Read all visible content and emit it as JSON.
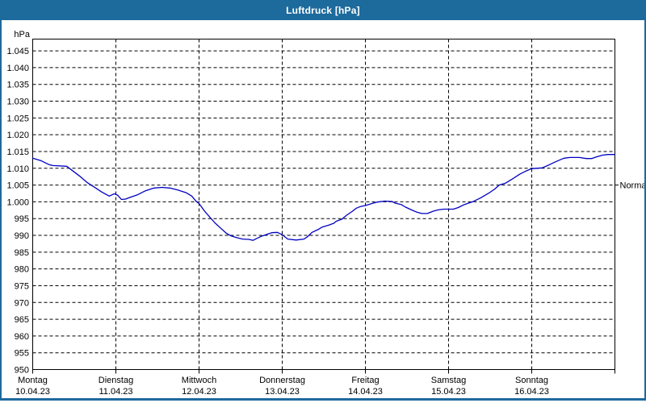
{
  "window": {
    "title": "Luftdruck [hPa]"
  },
  "colors": {
    "titlebar": "#1d6a9c",
    "frame": "#1d6a9c",
    "plot_background": "#ffffff",
    "grid": "#000000",
    "text": "#000000",
    "line": "#0000c0"
  },
  "chart_data": {
    "type": "line",
    "title": "Luftdruck [hPa]",
    "ylabel": "hPa",
    "y_unit_label": "hPa",
    "ylim": [
      950,
      1048.5
    ],
    "x_range_hours": 168,
    "grid": {
      "dashed": true,
      "color": "#000000"
    },
    "legend_position": "none",
    "line_color": "#0000c0",
    "y_ticks": [
      950,
      955,
      960,
      965,
      970,
      975,
      980,
      985,
      990,
      995,
      1000,
      1005,
      1010,
      1015,
      1020,
      1025,
      1030,
      1035,
      1040,
      1045
    ],
    "y_tick_labels": [
      "950",
      "955",
      "960",
      "965",
      "970",
      "975",
      "980",
      "985",
      "990",
      "995",
      "1.000",
      "1.005",
      "1.010",
      "1.015",
      "1.020",
      "1.025",
      "1.030",
      "1.035",
      "1.040",
      "1.045"
    ],
    "days": [
      {
        "label": "Montag",
        "date": "10.04.23"
      },
      {
        "label": "Dienstag",
        "date": "11.04.23"
      },
      {
        "label": "Mittwoch",
        "date": "12.04.23"
      },
      {
        "label": "Donnerstag",
        "date": "13.04.23"
      },
      {
        "label": "Freitag",
        "date": "14.04.23"
      },
      {
        "label": "Samstag",
        "date": "15.04.23"
      },
      {
        "label": "Sonntag",
        "date": "16.04.23"
      }
    ],
    "normal_marker": {
      "label": "Normal",
      "value": 1005
    },
    "series": [
      {
        "name": "Luftdruck",
        "unit": "hPa",
        "points": [
          [
            0,
            1013.0
          ],
          [
            2.3,
            1012.3
          ],
          [
            4.7,
            1011.1
          ],
          [
            5.8,
            1010.8
          ],
          [
            9.8,
            1010.6
          ],
          [
            11.2,
            1009.5
          ],
          [
            13.5,
            1007.7
          ],
          [
            15.8,
            1005.7
          ],
          [
            18.2,
            1004.1
          ],
          [
            19.8,
            1003.0
          ],
          [
            22.1,
            1001.7
          ],
          [
            23.5,
            1002.4
          ],
          [
            24.5,
            1002.0
          ],
          [
            25.6,
            1000.7
          ],
          [
            26.8,
            1000.8
          ],
          [
            28,
            1001.3
          ],
          [
            30.3,
            1002.1
          ],
          [
            32.6,
            1003.3
          ],
          [
            35,
            1004.1
          ],
          [
            37.3,
            1004.3
          ],
          [
            39.6,
            1004.1
          ],
          [
            41.9,
            1003.5
          ],
          [
            44.3,
            1002.7
          ],
          [
            45.9,
            1001.7
          ],
          [
            47.3,
            1000.0
          ],
          [
            48,
            999.5
          ],
          [
            49.6,
            997.2
          ],
          [
            51.3,
            995.2
          ],
          [
            52.7,
            993.6
          ],
          [
            54.3,
            992.1
          ],
          [
            55.9,
            990.6
          ],
          [
            57.3,
            989.8
          ],
          [
            58.9,
            989.3
          ],
          [
            60.6,
            988.9
          ],
          [
            62.4,
            988.8
          ],
          [
            63.6,
            988.5
          ],
          [
            64.3,
            988.9
          ],
          [
            65.9,
            989.7
          ],
          [
            67.6,
            990.3
          ],
          [
            69,
            990.8
          ],
          [
            70.6,
            990.9
          ],
          [
            72,
            990.2
          ],
          [
            73.6,
            988.9
          ],
          [
            76,
            988.6
          ],
          [
            78.3,
            988.9
          ],
          [
            79.4,
            989.7
          ],
          [
            80.6,
            990.9
          ],
          [
            82.3,
            991.7
          ],
          [
            83.6,
            992.5
          ],
          [
            85.3,
            993.0
          ],
          [
            86.9,
            993.6
          ],
          [
            87.6,
            994.2
          ],
          [
            89.2,
            994.8
          ],
          [
            90.6,
            996.0
          ],
          [
            92.3,
            997.2
          ],
          [
            93.4,
            998.1
          ],
          [
            94.6,
            998.6
          ],
          [
            96,
            998.9
          ],
          [
            97.6,
            999.4
          ],
          [
            99.3,
            999.9
          ],
          [
            101.6,
            1000.2
          ],
          [
            103.7,
            1000.1
          ],
          [
            104.6,
            999.6
          ],
          [
            106.3,
            999.2
          ],
          [
            107.6,
            998.4
          ],
          [
            109.3,
            997.6
          ],
          [
            110.9,
            996.9
          ],
          [
            112.3,
            996.5
          ],
          [
            113.9,
            996.5
          ],
          [
            115.6,
            997.2
          ],
          [
            117,
            997.6
          ],
          [
            118.6,
            997.8
          ],
          [
            120,
            997.8
          ],
          [
            121.4,
            997.8
          ],
          [
            122.8,
            998.3
          ],
          [
            124.6,
            999.2
          ],
          [
            126.9,
            1000.0
          ],
          [
            129.3,
            1001.2
          ],
          [
            131.6,
            1002.6
          ],
          [
            133.3,
            1003.8
          ],
          [
            134.6,
            1005.0
          ],
          [
            136.5,
            1005.6
          ],
          [
            138.4,
            1006.8
          ],
          [
            140.5,
            1008.2
          ],
          [
            142.4,
            1009.2
          ],
          [
            144,
            1009.9
          ],
          [
            145.4,
            1010.0
          ],
          [
            147,
            1010.1
          ],
          [
            148.6,
            1010.8
          ],
          [
            150.2,
            1011.6
          ],
          [
            151.9,
            1012.4
          ],
          [
            153.3,
            1013.0
          ],
          [
            155,
            1013.2
          ],
          [
            157.8,
            1013.2
          ],
          [
            159.7,
            1012.9
          ],
          [
            161.3,
            1012.9
          ],
          [
            162.7,
            1013.4
          ],
          [
            164.4,
            1013.9
          ],
          [
            166,
            1014.1
          ],
          [
            167.4,
            1014.1
          ],
          [
            168,
            1014.1
          ]
        ]
      }
    ]
  }
}
